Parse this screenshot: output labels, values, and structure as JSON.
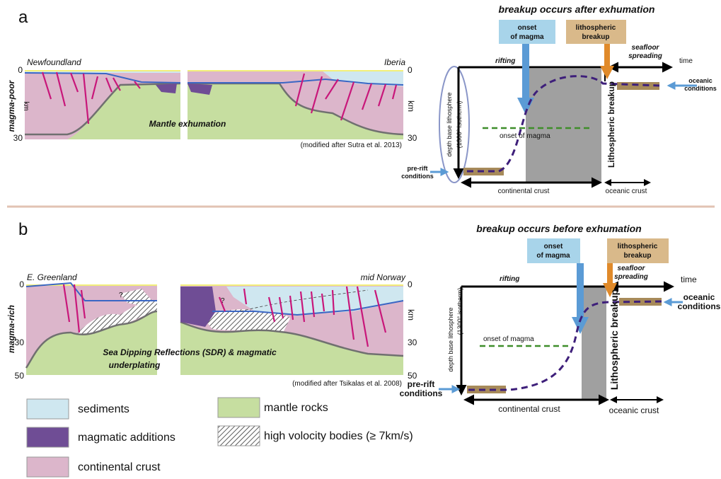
{
  "panel_a": {
    "label": "a",
    "section": {
      "left_end": "Newfoundland",
      "right_end": "Iberia",
      "setting": "magma-poor",
      "left_depths": [
        "0",
        "30"
      ],
      "right_depths": [
        "0",
        "30"
      ],
      "depth_unit": "km",
      "annotation": [
        "Mantle exhumation"
      ],
      "source": "(modified after Sutra et al. 2013)"
    },
    "timeline": {
      "title": "breakup occurs after exhumation",
      "magma_box": [
        "onset",
        "of magma"
      ],
      "breakup_box": [
        "lithospheric",
        "breakup"
      ],
      "rifting": "rifting",
      "spreading": [
        "seafloor",
        "spreading"
      ],
      "time": "time",
      "oceanic_conditions": [
        "oceanic",
        "conditions"
      ],
      "depth_axis": [
        "depth base lithosphere",
        "(1300° isotherm)"
      ],
      "onset_line": "onset of magma",
      "breakup_line": "Lithospheric breakup",
      "prerift_conditions": [
        "pre-rift",
        "conditions"
      ],
      "continental_crust": "continental crust",
      "oceanic_crust": "oceanic crust"
    }
  },
  "panel_b": {
    "label": "b",
    "section": {
      "left_end": "E. Greenland",
      "right_end": "mid Norway",
      "setting": "magma-rich",
      "left_depths": [
        "0",
        "30",
        "50"
      ],
      "right_depths": [
        "0",
        "30",
        "50"
      ],
      "depth_unit": "km",
      "question_marks": [
        "?",
        "?"
      ],
      "annotation": [
        "Sea Dipping Reflections (SDR) & magmatic",
        "underplating"
      ],
      "source": "(modified after Tsikalas et al. 2008)"
    },
    "timeline": {
      "title": "breakup occurs before exhumation",
      "magma_box": [
        "onset",
        "of magma"
      ],
      "breakup_box": [
        "lithospheric",
        "breakup"
      ],
      "rifting": "rifting",
      "spreading": [
        "seafloor",
        "spreading"
      ],
      "time": "time",
      "oceanic_conditions": [
        "oceanic",
        "conditions"
      ],
      "depth_axis": [
        "depth base lithosphere",
        "(1300° isotherm)"
      ],
      "onset_line": "onset of magma",
      "breakup_line": "Lithospheric breakup",
      "prerift_conditions": [
        "pre-rift",
        "conditions"
      ],
      "continental_crust": "continental crust",
      "oceanic_crust": "oceanic crust"
    }
  },
  "legend": [
    "sediments",
    "magmatic additions",
    "continental crust",
    "mantle rocks",
    "high volocity bodies (≥ 7km/s)"
  ]
}
